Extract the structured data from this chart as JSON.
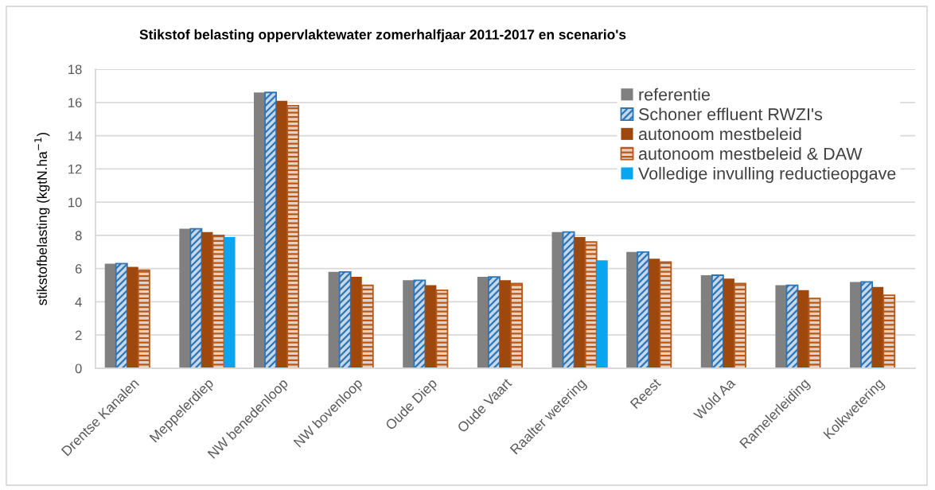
{
  "chart_data": {
    "type": "bar",
    "title": "Stikstof belasting oppervlaktewater zomerhalfjaar 2011-2017 en scenario's",
    "ylabel": "stikstofbelasting (kgtN.ha$^{−1}$)",
    "categories": [
      "Drentse Kanalen",
      "Meppelerdiep",
      "NW benedenloop",
      "NW bovenloop",
      "Oude Diep",
      "Oude Vaart",
      "Raalter wetering",
      "Reest",
      "Wold Aa",
      "Ramelerleiding",
      "Kolkwetering"
    ],
    "series": [
      {
        "name": "referentie",
        "color": "#808080",
        "values": [
          6.3,
          8.4,
          16.6,
          5.8,
          5.3,
          5.5,
          8.2,
          7.0,
          5.6,
          5.0,
          5.2
        ]
      },
      {
        "name": "Schoner effluent RWZI's",
        "color": "#2e75b6",
        "values": [
          6.3,
          8.4,
          16.6,
          5.8,
          5.3,
          5.5,
          8.2,
          7.0,
          5.6,
          5.0,
          5.2
        ]
      },
      {
        "name": "autonoom mestbeleid",
        "color": "#9e480e",
        "values": [
          6.1,
          8.2,
          16.1,
          5.5,
          5.0,
          5.3,
          7.9,
          6.6,
          5.4,
          4.7,
          4.9
        ]
      },
      {
        "name": "autonoom mestbeleid & DAW",
        "color": "#b55a1c",
        "values": [
          5.9,
          8.0,
          15.8,
          5.0,
          4.7,
          5.1,
          7.6,
          6.4,
          5.1,
          4.2,
          4.4
        ]
      },
      {
        "name": "Volledige invulling reductieopgave",
        "color": "#0aa5ef",
        "values": [
          null,
          7.9,
          null,
          null,
          null,
          null,
          6.5,
          null,
          null,
          null,
          null
        ]
      }
    ],
    "ylim": [
      0,
      18
    ],
    "yticks": [
      0,
      2,
      4,
      6,
      8,
      10,
      12,
      14,
      16,
      18
    ],
    "grid": "y",
    "legend": "top right"
  }
}
